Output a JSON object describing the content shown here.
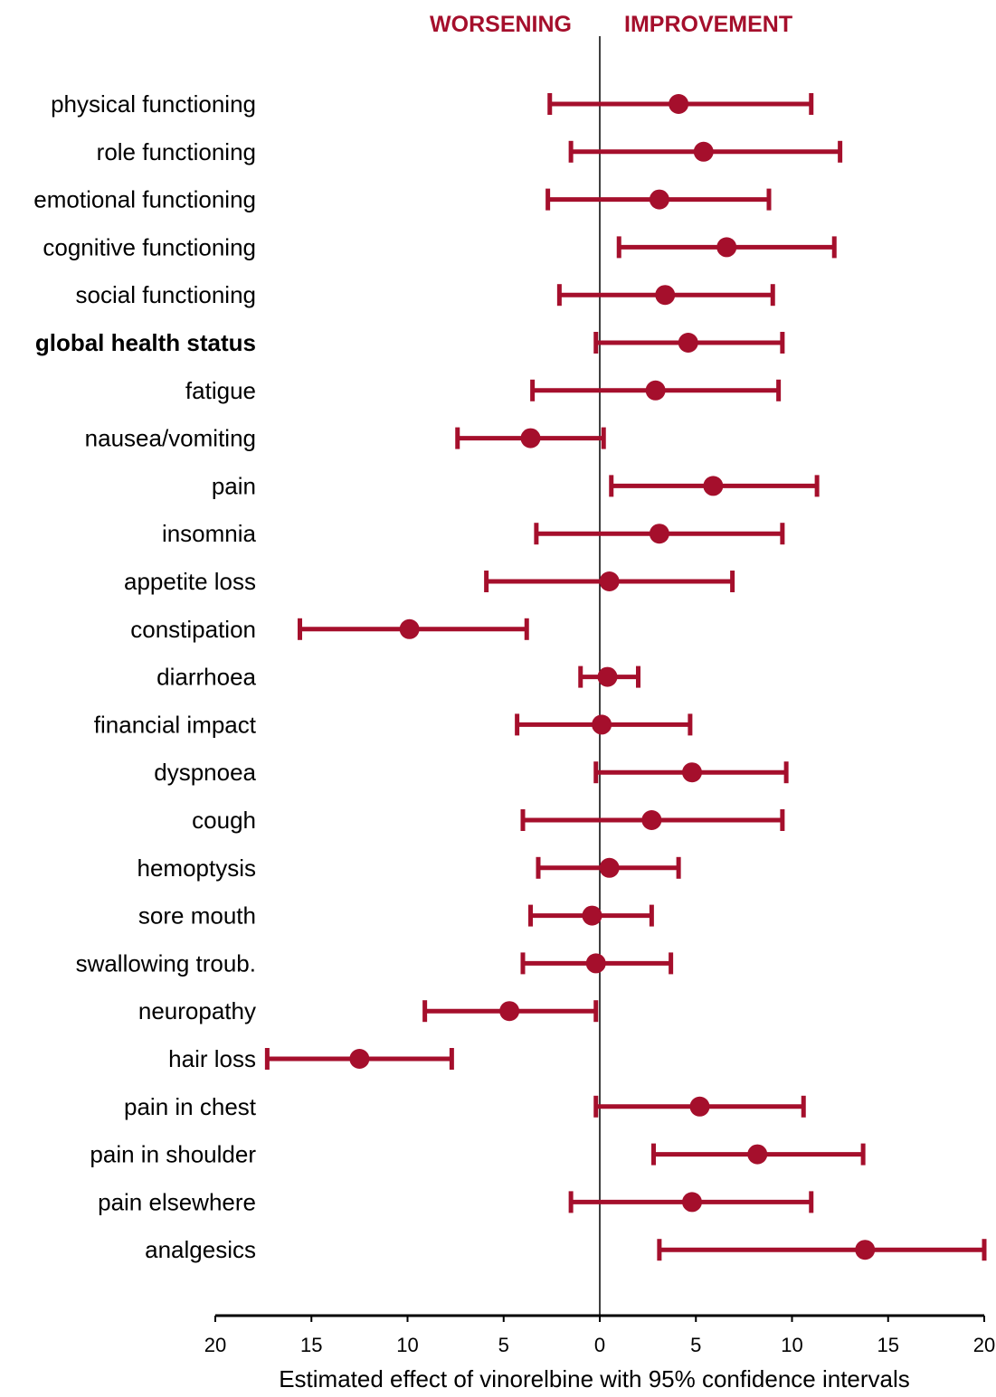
{
  "chart_data": {
    "type": "forest",
    "xlabel": "Estimated effect of vinorelbine with 95% confidence intervals",
    "direction_labels": {
      "left": "WORSENING",
      "right": "IMPROVEMENT"
    },
    "xlim": [
      -20,
      20
    ],
    "ticks": [
      {
        "value": -20,
        "label": "20"
      },
      {
        "value": -15,
        "label": "15"
      },
      {
        "value": -10,
        "label": "10"
      },
      {
        "value": -5,
        "label": "5"
      },
      {
        "value": 0,
        "label": "0"
      },
      {
        "value": 5,
        "label": "5"
      },
      {
        "value": 10,
        "label": "10"
      },
      {
        "value": 15,
        "label": "15"
      },
      {
        "value": 20,
        "label": "20"
      }
    ],
    "colors": {
      "series": "#a50f2c",
      "axis": "#000000"
    },
    "rows": [
      {
        "label": "physical functioning",
        "estimate": 4.1,
        "lower": -2.6,
        "upper": 11.0,
        "bold": false
      },
      {
        "label": "role functioning",
        "estimate": 5.4,
        "lower": -1.5,
        "upper": 12.5,
        "bold": false
      },
      {
        "label": "emotional functioning",
        "estimate": 3.1,
        "lower": -2.7,
        "upper": 8.8,
        "bold": false
      },
      {
        "label": "cognitive functioning",
        "estimate": 6.6,
        "lower": 1.0,
        "upper": 12.2,
        "bold": false
      },
      {
        "label": "social functioning",
        "estimate": 3.4,
        "lower": -2.1,
        "upper": 9.0,
        "bold": false
      },
      {
        "label": "global health status",
        "estimate": 4.6,
        "lower": -0.2,
        "upper": 9.5,
        "bold": true
      },
      {
        "label": "fatigue",
        "estimate": 2.9,
        "lower": -3.5,
        "upper": 9.3,
        "bold": false
      },
      {
        "label": "nausea/vomiting",
        "estimate": -3.6,
        "lower": -7.4,
        "upper": 0.2,
        "bold": false
      },
      {
        "label": "pain",
        "estimate": 5.9,
        "lower": 0.6,
        "upper": 11.3,
        "bold": false
      },
      {
        "label": "insomnia",
        "estimate": 3.1,
        "lower": -3.3,
        "upper": 9.5,
        "bold": false
      },
      {
        "label": "appetite loss",
        "estimate": 0.5,
        "lower": -5.9,
        "upper": 6.9,
        "bold": false
      },
      {
        "label": "constipation",
        "estimate": -9.9,
        "lower": -15.6,
        "upper": -3.8,
        "bold": false
      },
      {
        "label": "diarrhoea",
        "estimate": 0.4,
        "lower": -1.0,
        "upper": 2.0,
        "bold": false
      },
      {
        "label": "financial impact",
        "estimate": 0.1,
        "lower": -4.3,
        "upper": 4.7,
        "bold": false
      },
      {
        "label": "dyspnoea",
        "estimate": 4.8,
        "lower": -0.2,
        "upper": 9.7,
        "bold": false
      },
      {
        "label": "cough",
        "estimate": 2.7,
        "lower": -4.0,
        "upper": 9.5,
        "bold": false
      },
      {
        "label": "hemoptysis",
        "estimate": 0.5,
        "lower": -3.2,
        "upper": 4.1,
        "bold": false
      },
      {
        "label": "sore mouth",
        "estimate": -0.4,
        "lower": -3.6,
        "upper": 2.7,
        "bold": false
      },
      {
        "label": "swallowing troub.",
        "estimate": -0.2,
        "lower": -4.0,
        "upper": 3.7,
        "bold": false
      },
      {
        "label": "neuropathy",
        "estimate": -4.7,
        "lower": -9.1,
        "upper": -0.2,
        "bold": false
      },
      {
        "label": "hair loss",
        "estimate": -12.5,
        "lower": -17.3,
        "upper": -7.7,
        "bold": false
      },
      {
        "label": "pain in chest",
        "estimate": 5.2,
        "lower": -0.2,
        "upper": 10.6,
        "bold": false
      },
      {
        "label": "pain in shoulder",
        "estimate": 8.2,
        "lower": 2.8,
        "upper": 13.7,
        "bold": false
      },
      {
        "label": "pain elsewhere",
        "estimate": 4.8,
        "lower": -1.5,
        "upper": 11.0,
        "bold": false
      },
      {
        "label": "analgesics",
        "estimate": 13.8,
        "lower": 3.1,
        "upper": 20.0,
        "bold": false
      }
    ]
  }
}
